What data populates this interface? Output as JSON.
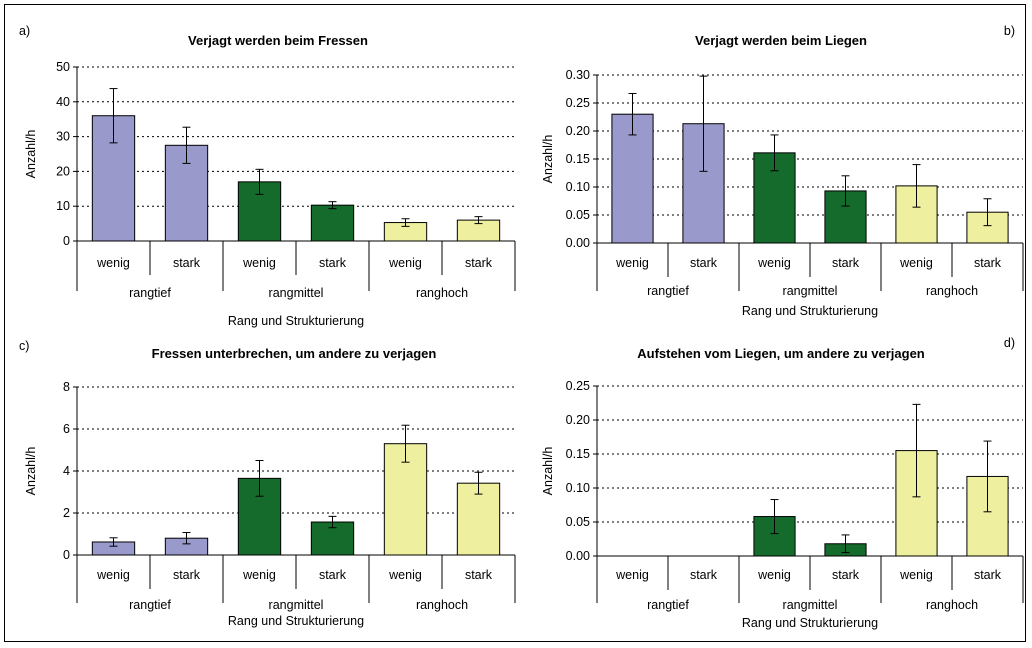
{
  "colors": {
    "rangtief": "#9999cc",
    "rangmittel": "#146b2c",
    "ranghoch": "#eef0a0"
  },
  "chart_data": [
    {
      "type": "bar",
      "panel": "a)",
      "title": "Verjagt werden beim Fressen",
      "ylabel": "Anzahl/h",
      "xlabel": "Rang und Strukturierung",
      "ylim": [
        0,
        50
      ],
      "yticks": [
        "0",
        "10",
        "20",
        "30",
        "40",
        "50"
      ],
      "groups": [
        "rangtief",
        "rangmittel",
        "ranghoch"
      ],
      "categories": [
        "wenig",
        "stark",
        "wenig",
        "stark",
        "wenig",
        "stark"
      ],
      "values": [
        36,
        27.5,
        17,
        10.3,
        5.3,
        6
      ],
      "errors": [
        7.8,
        5.2,
        3.6,
        1,
        1.1,
        1
      ]
    },
    {
      "type": "bar",
      "panel": "b)",
      "title": "Verjagt werden beim Liegen",
      "ylabel": "Anzahl/h",
      "xlabel": "Rang und Strukturierung",
      "ylim": [
        0,
        0.3
      ],
      "yticks": [
        "0.00",
        "0.05",
        "0.10",
        "0.15",
        "0.20",
        "0.25",
        "0.30"
      ],
      "groups": [
        "rangtief",
        "rangmittel",
        "ranghoch"
      ],
      "categories": [
        "wenig",
        "stark",
        "wenig",
        "stark",
        "wenig",
        "stark"
      ],
      "values": [
        0.23,
        0.213,
        0.161,
        0.093,
        0.102,
        0.055
      ],
      "errors": [
        0.037,
        0.085,
        0.032,
        0.027,
        0.038,
        0.024
      ]
    },
    {
      "type": "bar",
      "panel": "c)",
      "title": "Fressen unterbrechen, um andere zu verjagen",
      "ylabel": "Anzahl/h",
      "xlabel": "Rang und Strukturierung",
      "ylim": [
        0,
        8
      ],
      "yticks": [
        "0",
        "2",
        "4",
        "6",
        "8"
      ],
      "groups": [
        "rangtief",
        "rangmittel",
        "ranghoch"
      ],
      "categories": [
        "wenig",
        "stark",
        "wenig",
        "stark",
        "wenig",
        "stark"
      ],
      "values": [
        0.62,
        0.8,
        3.65,
        1.57,
        5.3,
        3.42
      ],
      "errors": [
        0.2,
        0.27,
        0.85,
        0.27,
        0.88,
        0.52
      ]
    },
    {
      "type": "bar",
      "panel": "d)",
      "title": "Aufstehen vom Liegen, um andere zu verjagen",
      "ylabel": "Anzahl/h",
      "xlabel": "Rang und Strukturierung",
      "ylim": [
        0,
        0.25
      ],
      "yticks": [
        "0.00",
        "0.05",
        "0.10",
        "0.15",
        "0.20",
        "0.25"
      ],
      "groups": [
        "rangtief",
        "rangmittel",
        "ranghoch"
      ],
      "categories": [
        "wenig",
        "stark",
        "wenig",
        "stark",
        "wenig",
        "stark"
      ],
      "values": [
        0,
        0,
        0.058,
        0.018,
        0.155,
        0.117
      ],
      "errors": [
        0,
        0,
        0.025,
        0.013,
        0.068,
        0.052
      ]
    }
  ]
}
